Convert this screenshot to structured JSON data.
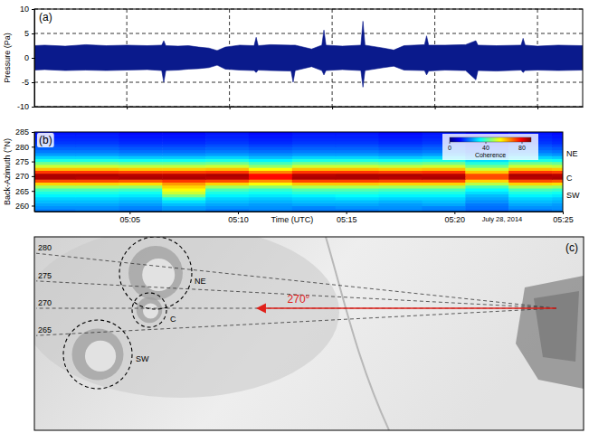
{
  "chart_data": [
    {
      "type": "area",
      "title": "(a)",
      "y_label": "Pressure (Pa)",
      "color": "#0a1a8c",
      "x": [
        300.5,
        301,
        302,
        303,
        304,
        305,
        306,
        306.7,
        306.8,
        306.9,
        307.5,
        308,
        308.5,
        309,
        309.4,
        309.8,
        310.5,
        311.2,
        311.3,
        311.4,
        312,
        313,
        313.1,
        313.2,
        314,
        314.5,
        314.6,
        314.7,
        315.5,
        316.4,
        316.5,
        316.6,
        317.5,
        318,
        318.5,
        319.5,
        319.6,
        319.7,
        320.5,
        321.5,
        322,
        322.1,
        323,
        324.2,
        324.3,
        324.4,
        325,
        326,
        327.2
      ],
      "upper": [
        2.5,
        2.6,
        2.4,
        2.7,
        2.5,
        2.6,
        2.5,
        2.6,
        3.5,
        2.5,
        2.4,
        2.5,
        2.2,
        2.0,
        1.5,
        2.2,
        2.6,
        2.5,
        4.2,
        2.5,
        2.7,
        2.6,
        2.6,
        2.6,
        1.8,
        2.6,
        5.7,
        2.6,
        2.4,
        2.6,
        7.5,
        2.6,
        2.0,
        1.6,
        2.5,
        2.7,
        4.5,
        2.6,
        2.6,
        2.7,
        3.5,
        2.6,
        2.5,
        2.6,
        4.0,
        2.6,
        2.4,
        2.6,
        2.5
      ],
      "lower": [
        -2.5,
        -2.4,
        -2.6,
        -2.5,
        -2.6,
        -2.5,
        -2.4,
        -2.6,
        -5.0,
        -2.6,
        -2.5,
        -2.3,
        -2.2,
        -2.0,
        -1.5,
        -2.3,
        -2.5,
        -2.6,
        -3.0,
        -2.5,
        -2.6,
        -2.7,
        -5.0,
        -2.6,
        -1.8,
        -2.6,
        -3.5,
        -2.6,
        -2.4,
        -2.6,
        -6.0,
        -2.6,
        -2.0,
        -1.7,
        -2.5,
        -2.6,
        -3.5,
        -2.7,
        -2.5,
        -2.6,
        -4.5,
        -2.6,
        -2.7,
        -2.5,
        -3.0,
        -2.6,
        -2.5,
        -2.6,
        -2.5
      ],
      "xlim": [
        300.5,
        327.2
      ],
      "xticks": [
        305,
        310,
        315,
        320,
        325
      ],
      "ylim": [
        -10,
        10
      ],
      "yticks": [
        -10,
        -5,
        0,
        5,
        10
      ],
      "grid": true,
      "tick_labels": "y"
    },
    {
      "type": "heatmap",
      "title": "(b)",
      "y_label": "Back-Azimuth (°N)",
      "x_label": "Time (UTC)",
      "xlim": [
        300.6,
        325
      ],
      "xticks": [
        {
          "value": 305,
          "label": "05:05"
        },
        {
          "value": 310,
          "label": "05:10"
        },
        {
          "value": 315,
          "label": "05:15"
        },
        {
          "value": 320,
          "label": "05:20"
        },
        {
          "value": 325,
          "label": "05:25"
        }
      ],
      "ylim": [
        258,
        285
      ],
      "yticks": [
        260,
        265,
        270,
        275,
        280,
        285
      ],
      "time_edges": [
        300.6,
        302.5,
        304.5,
        306.5,
        308.5,
        310.5,
        312.5,
        314.5,
        316.5,
        318.5,
        320.5,
        322.5,
        324.5,
        325
      ],
      "azimuth_edges": [
        258,
        259,
        260,
        261,
        262,
        263,
        264,
        265,
        266,
        267,
        268,
        269,
        270,
        271,
        272,
        273,
        274,
        275,
        276,
        277,
        278,
        279,
        280,
        281,
        282,
        283,
        284,
        285
      ],
      "cells": [
        [
          22,
          23,
          22,
          24,
          22,
          23,
          22,
          22,
          23,
          22,
          20,
          22,
          23
        ],
        [
          24,
          24,
          23,
          25,
          24,
          24,
          23,
          24,
          24,
          23,
          21,
          24,
          24
        ],
        [
          26,
          26,
          25,
          28,
          26,
          25,
          26,
          26,
          25,
          26,
          22,
          26,
          25
        ],
        [
          28,
          28,
          27,
          31,
          28,
          27,
          28,
          28,
          27,
          28,
          24,
          28,
          27
        ],
        [
          30,
          30,
          29,
          36,
          30,
          29,
          30,
          31,
          30,
          30,
          26,
          30,
          29
        ],
        [
          33,
          33,
          32,
          45,
          33,
          32,
          33,
          34,
          33,
          33,
          28,
          33,
          32
        ],
        [
          36,
          36,
          35,
          52,
          36,
          35,
          37,
          37,
          36,
          36,
          31,
          36,
          35
        ],
        [
          40,
          40,
          39,
          56,
          40,
          38,
          41,
          41,
          40,
          40,
          34,
          40,
          39
        ],
        [
          48,
          48,
          47,
          60,
          48,
          46,
          49,
          49,
          48,
          48,
          40,
          48,
          47
        ],
        [
          60,
          60,
          59,
          65,
          60,
          56,
          61,
          61,
          60,
          60,
          50,
          60,
          59
        ],
        [
          72,
          72,
          71,
          74,
          72,
          66,
          73,
          73,
          72,
          72,
          60,
          72,
          71
        ],
        [
          86,
          85,
          86,
          86,
          85,
          78,
          86,
          86,
          85,
          86,
          72,
          85,
          86
        ],
        [
          86,
          86,
          85,
          85,
          86,
          78,
          85,
          86,
          86,
          85,
          72,
          86,
          85
        ],
        [
          74,
          74,
          73,
          73,
          74,
          67,
          74,
          74,
          73,
          74,
          61,
          74,
          73
        ],
        [
          62,
          62,
          61,
          61,
          62,
          56,
          62,
          62,
          61,
          62,
          52,
          62,
          61
        ],
        [
          52,
          52,
          51,
          51,
          52,
          47,
          52,
          52,
          51,
          52,
          44,
          52,
          51
        ],
        [
          44,
          44,
          43,
          43,
          44,
          40,
          44,
          44,
          43,
          44,
          37,
          44,
          43
        ],
        [
          36,
          36,
          35,
          35,
          36,
          33,
          36,
          36,
          35,
          36,
          31,
          36,
          35
        ],
        [
          30,
          30,
          29,
          29,
          30,
          28,
          30,
          30,
          29,
          30,
          26,
          30,
          29
        ],
        [
          25,
          25,
          24,
          24,
          25,
          24,
          25,
          25,
          24,
          25,
          22,
          25,
          24
        ],
        [
          22,
          22,
          21,
          21,
          22,
          21,
          22,
          22,
          21,
          22,
          19,
          22,
          21
        ],
        [
          20,
          20,
          19,
          19,
          20,
          19,
          20,
          20,
          19,
          20,
          17,
          20,
          19
        ],
        [
          18,
          18,
          17,
          17,
          18,
          17,
          18,
          18,
          17,
          18,
          15,
          18,
          17
        ],
        [
          16,
          16,
          15,
          15,
          16,
          15,
          16,
          16,
          15,
          16,
          14,
          16,
          15
        ],
        [
          15,
          15,
          14,
          14,
          15,
          14,
          15,
          15,
          14,
          15,
          13,
          15,
          14
        ],
        [
          14,
          14,
          13,
          13,
          14,
          13,
          14,
          14,
          13,
          14,
          12,
          14,
          13
        ],
        [
          13,
          13,
          12,
          12,
          13,
          12,
          13,
          13,
          12,
          13,
          11,
          13,
          12
        ]
      ],
      "colorbar": {
        "label": "Coherence",
        "range": [
          0,
          90
        ],
        "ticks": [
          0,
          40,
          80
        ]
      },
      "annotations": [
        {
          "text": "NE",
          "y": 277.5
        },
        {
          "text": "C",
          "y": 269.5
        },
        {
          "text": "SW",
          "y": 263.5
        },
        {
          "text": "July 28, 2014",
          "x": 322.2
        }
      ]
    },
    {
      "type": "map",
      "title": "(c)",
      "rays": [
        280,
        275,
        270,
        265
      ],
      "arrow": {
        "azimuth": 270,
        "label": "270°"
      },
      "features": [
        "NE",
        "C",
        "SW"
      ]
    }
  ]
}
